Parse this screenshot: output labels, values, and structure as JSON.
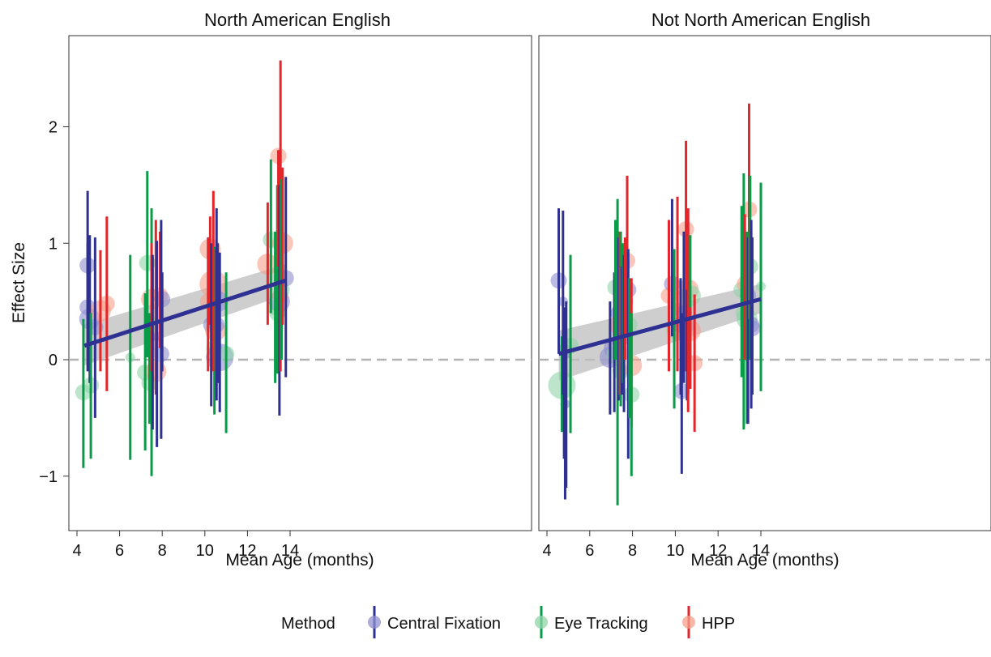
{
  "colors": {
    "central_fixation": "#2e3192",
    "eye_tracking": "#0a9b49",
    "hpp": "#e3262c",
    "central_fixation_point": "#8f8fd0",
    "eye_tracking_point": "#8fd4a8",
    "hpp_point": "#f7a08a",
    "fit_line": "#2e3192",
    "ribbon": "#bdbdbd",
    "zero_line": "#b3b3b3"
  },
  "legend": {
    "title": "Method",
    "items": [
      {
        "key": "central_fixation",
        "label": "Central Fixation",
        "icon": "errorbar-point-icon"
      },
      {
        "key": "eye_tracking",
        "label": "Eye Tracking",
        "icon": "errorbar-point-icon"
      },
      {
        "key": "hpp",
        "label": "HPP",
        "icon": "errorbar-point-icon"
      }
    ]
  },
  "chart_data": [
    {
      "type": "scatter",
      "title": "North American English",
      "xlabel": "Mean Age (months)",
      "ylabel": "Effect Size",
      "xlim": [
        3.8,
        14.4
      ],
      "ylim": [
        -1.45,
        2.75
      ],
      "xticks": [
        "4",
        "6",
        "8",
        "10",
        "12",
        "14"
      ],
      "yticks": [
        "−1",
        "0",
        "1",
        "2"
      ],
      "reference_line_y": 0,
      "fit": {
        "x": [
          4.35,
          13.8
        ],
        "y": [
          0.12,
          0.68
        ],
        "lower": [
          -0.05,
          0.56
        ],
        "upper": [
          0.3,
          0.82
        ]
      },
      "points": [
        {
          "method": "eye_tracking",
          "x": 4.3,
          "y": -0.28,
          "lo": -0.93,
          "hi": 0.35,
          "size": 2
        },
        {
          "method": "central_fixation",
          "x": 4.5,
          "y": 0.81,
          "lo": 0.3,
          "hi": 1.45,
          "size": 2
        },
        {
          "method": "central_fixation",
          "x": 4.5,
          "y": 0.45,
          "lo": -0.1,
          "hi": 1.0,
          "size": 2
        },
        {
          "method": "central_fixation",
          "x": 4.6,
          "y": 0.35,
          "lo": -0.2,
          "hi": 1.07,
          "size": 3
        },
        {
          "method": "eye_tracking",
          "x": 4.65,
          "y": -0.22,
          "lo": -0.85,
          "hi": 0.4,
          "size": 2
        },
        {
          "method": "central_fixation",
          "x": 4.85,
          "y": 0.28,
          "lo": -0.5,
          "hi": 1.05,
          "size": 2
        },
        {
          "method": "hpp",
          "x": 5.1,
          "y": 0.42,
          "lo": -0.1,
          "hi": 0.94,
          "size": 3
        },
        {
          "method": "hpp",
          "x": 5.4,
          "y": 0.48,
          "lo": -0.27,
          "hi": 1.23,
          "size": 2
        },
        {
          "method": "eye_tracking",
          "x": 6.5,
          "y": 0.02,
          "lo": -0.86,
          "hi": 0.9,
          "size": 1
        },
        {
          "method": "eye_tracking",
          "x": 7.2,
          "y": -0.11,
          "lo": -0.78,
          "hi": 0.57,
          "size": 2
        },
        {
          "method": "eye_tracking",
          "x": 7.3,
          "y": 0.83,
          "lo": 0.02,
          "hi": 1.62,
          "size": 2
        },
        {
          "method": "eye_tracking",
          "x": 7.4,
          "y": -0.2,
          "lo": -0.55,
          "hi": 0.4,
          "size": 2
        },
        {
          "method": "eye_tracking",
          "x": 7.5,
          "y": 0.3,
          "lo": -1.0,
          "hi": 1.3,
          "size": 2
        },
        {
          "method": "hpp",
          "x": 7.5,
          "y": 0.52,
          "lo": -0.1,
          "hi": 1.0,
          "size": 3
        },
        {
          "method": "central_fixation",
          "x": 7.55,
          "y": 0.15,
          "lo": -0.6,
          "hi": 0.9,
          "size": 2
        },
        {
          "method": "hpp",
          "x": 7.7,
          "y": -0.1,
          "lo": -0.3,
          "hi": 1.2,
          "size": 3
        },
        {
          "method": "central_fixation",
          "x": 7.75,
          "y": 0.2,
          "lo": -0.75,
          "hi": 1.02,
          "size": 1
        },
        {
          "method": "hpp",
          "x": 7.9,
          "y": 0.55,
          "lo": 0.1,
          "hi": 1.1,
          "size": 2
        },
        {
          "method": "central_fixation",
          "x": 7.95,
          "y": 0.05,
          "lo": -0.68,
          "hi": 1.2,
          "size": 2
        },
        {
          "method": "central_fixation",
          "x": 8.0,
          "y": 0.52,
          "lo": -0.1,
          "hi": 0.75,
          "size": 2
        },
        {
          "method": "hpp",
          "x": 10.15,
          "y": 0.5,
          "lo": -0.1,
          "hi": 1.05,
          "size": 2
        },
        {
          "method": "hpp",
          "x": 10.25,
          "y": 0.95,
          "lo": 0.3,
          "hi": 1.23,
          "size": 3
        },
        {
          "method": "central_fixation",
          "x": 10.3,
          "y": 0.3,
          "lo": -0.4,
          "hi": 1.0,
          "size": 2
        },
        {
          "method": "hpp",
          "x": 10.4,
          "y": 0.65,
          "lo": -0.1,
          "hi": 1.45,
          "size": 4
        },
        {
          "method": "eye_tracking",
          "x": 10.45,
          "y": 0.1,
          "lo": -0.47,
          "hi": 0.97,
          "size": 2
        },
        {
          "method": "hpp",
          "x": 10.5,
          "y": 0.25,
          "lo": -0.1,
          "hi": 0.95,
          "size": 3
        },
        {
          "method": "central_fixation",
          "x": 10.55,
          "y": 0.3,
          "lo": -0.35,
          "hi": 1.3,
          "size": 2
        },
        {
          "method": "central_fixation",
          "x": 10.6,
          "y": 0.5,
          "lo": -0.2,
          "hi": 1.0,
          "size": 3
        },
        {
          "method": "central_fixation",
          "x": 10.7,
          "y": 0.02,
          "lo": -0.45,
          "hi": 0.92,
          "size": 4
        },
        {
          "method": "eye_tracking",
          "x": 11.0,
          "y": 0.05,
          "lo": -0.63,
          "hi": 0.75,
          "size": 2
        },
        {
          "method": "hpp",
          "x": 12.95,
          "y": 0.82,
          "lo": 0.3,
          "hi": 1.35,
          "size": 3
        },
        {
          "method": "eye_tracking",
          "x": 13.1,
          "y": 1.03,
          "lo": 0.4,
          "hi": 1.72,
          "size": 2
        },
        {
          "method": "eye_tracking",
          "x": 13.3,
          "y": 0.45,
          "lo": -0.2,
          "hi": 1.1,
          "size": 2
        },
        {
          "method": "eye_tracking",
          "x": 13.4,
          "y": 0.4,
          "lo": -0.12,
          "hi": 1.5,
          "size": 2
        },
        {
          "method": "hpp",
          "x": 13.45,
          "y": 1.75,
          "lo": 0.8,
          "hi": 1.8,
          "size": 2
        },
        {
          "method": "central_fixation",
          "x": 13.5,
          "y": 0.5,
          "lo": -0.48,
          "hi": 1.5,
          "size": 3
        },
        {
          "method": "hpp",
          "x": 13.55,
          "y": 0.55,
          "lo": -0.1,
          "hi": 2.57,
          "size": 2
        },
        {
          "method": "eye_tracking",
          "x": 13.6,
          "y": 0.6,
          "lo": 0.0,
          "hi": 1.55,
          "size": 2
        },
        {
          "method": "hpp",
          "x": 13.65,
          "y": 1.0,
          "lo": 0.3,
          "hi": 1.65,
          "size": 3
        },
        {
          "method": "central_fixation",
          "x": 13.8,
          "y": 0.7,
          "lo": -0.15,
          "hi": 1.57,
          "size": 2
        }
      ]
    },
    {
      "type": "scatter",
      "title": "Not North American English",
      "xlabel": "Mean Age (months)",
      "ylabel": "",
      "xlim": [
        3.8,
        14.4
      ],
      "ylim": [
        -1.45,
        2.75
      ],
      "xticks": [
        "4",
        "6",
        "8",
        "10",
        "12",
        "14"
      ],
      "yticks": [
        "−1",
        "0",
        "1",
        "2"
      ],
      "reference_line_y": 0,
      "fit": {
        "x": [
          4.55,
          14.0
        ],
        "y": [
          0.05,
          0.52
        ],
        "lower": [
          -0.18,
          0.4
        ],
        "upper": [
          0.25,
          0.65
        ]
      },
      "points": [
        {
          "method": "central_fixation",
          "x": 4.55,
          "y": 0.68,
          "lo": 0.05,
          "hi": 1.3,
          "size": 2
        },
        {
          "method": "eye_tracking",
          "x": 4.7,
          "y": -0.22,
          "lo": -0.62,
          "hi": 0.2,
          "size": 4
        },
        {
          "method": "central_fixation",
          "x": 4.75,
          "y": 0.5,
          "lo": -0.3,
          "hi": 1.28,
          "size": 1
        },
        {
          "method": "central_fixation",
          "x": 4.8,
          "y": 0.1,
          "lo": -0.85,
          "hi": 0.3,
          "size": 1
        },
        {
          "method": "central_fixation",
          "x": 4.85,
          "y": -0.38,
          "lo": -1.2,
          "hi": 0.45,
          "size": 1
        },
        {
          "method": "central_fixation",
          "x": 4.9,
          "y": 0.05,
          "lo": -1.1,
          "hi": 0.5,
          "size": 1
        },
        {
          "method": "eye_tracking",
          "x": 5.1,
          "y": 0.12,
          "lo": -0.63,
          "hi": 0.9,
          "size": 2
        },
        {
          "method": "central_fixation",
          "x": 6.95,
          "y": 0.02,
          "lo": -0.47,
          "hi": 0.5,
          "size": 3
        },
        {
          "method": "central_fixation",
          "x": 7.15,
          "y": 0.1,
          "lo": -0.45,
          "hi": 0.75,
          "size": 3
        },
        {
          "method": "eye_tracking",
          "x": 7.2,
          "y": 0.62,
          "lo": 0.0,
          "hi": 1.2,
          "size": 2
        },
        {
          "method": "eye_tracking",
          "x": 7.3,
          "y": 0.05,
          "lo": -1.25,
          "hi": 1.38,
          "size": 3
        },
        {
          "method": "central_fixation",
          "x": 7.35,
          "y": 0.4,
          "lo": -0.35,
          "hi": 1.05,
          "size": 2
        },
        {
          "method": "hpp",
          "x": 7.4,
          "y": 0.3,
          "lo": -0.3,
          "hi": 1.1,
          "size": 3
        },
        {
          "method": "eye_tracking",
          "x": 7.45,
          "y": -0.1,
          "lo": -0.4,
          "hi": 1.1,
          "size": 2
        },
        {
          "method": "central_fixation",
          "x": 7.5,
          "y": 0.3,
          "lo": -0.3,
          "hi": 0.8,
          "size": 2
        },
        {
          "method": "eye_tracking",
          "x": 7.55,
          "y": 0.45,
          "lo": -0.2,
          "hi": 1.0,
          "size": 2
        },
        {
          "method": "central_fixation",
          "x": 7.6,
          "y": 0.2,
          "lo": -0.45,
          "hi": 0.9,
          "size": 2
        },
        {
          "method": "hpp",
          "x": 7.65,
          "y": 0.5,
          "lo": 0.0,
          "hi": 1.05,
          "size": 2
        },
        {
          "method": "hpp",
          "x": 7.75,
          "y": 0.85,
          "lo": 0.2,
          "hi": 1.58,
          "size": 2
        },
        {
          "method": "central_fixation",
          "x": 7.8,
          "y": 0.6,
          "lo": -0.85,
          "hi": 0.95,
          "size": 2
        },
        {
          "method": "eye_tracking",
          "x": 7.85,
          "y": 0.3,
          "lo": -0.5,
          "hi": 0.7,
          "size": 2
        },
        {
          "method": "hpp",
          "x": 7.95,
          "y": -0.05,
          "lo": -0.58,
          "hi": 0.7,
          "size": 3
        },
        {
          "method": "eye_tracking",
          "x": 7.95,
          "y": -0.3,
          "lo": -1.0,
          "hi": 0.4,
          "size": 2
        },
        {
          "method": "hpp",
          "x": 9.7,
          "y": 0.55,
          "lo": -0.1,
          "hi": 1.2,
          "size": 2
        },
        {
          "method": "central_fixation",
          "x": 9.85,
          "y": 0.65,
          "lo": 0.2,
          "hi": 1.38,
          "size": 2
        },
        {
          "method": "eye_tracking",
          "x": 9.95,
          "y": 0.25,
          "lo": -0.42,
          "hi": 0.95,
          "size": 2
        },
        {
          "method": "hpp",
          "x": 10.1,
          "y": 0.5,
          "lo": -0.1,
          "hi": 1.4,
          "size": 3
        },
        {
          "method": "central_fixation",
          "x": 10.25,
          "y": 0.3,
          "lo": -0.3,
          "hi": 0.7,
          "size": 2
        },
        {
          "method": "central_fixation",
          "x": 10.3,
          "y": -0.27,
          "lo": -0.98,
          "hi": 0.4,
          "size": 2
        },
        {
          "method": "central_fixation",
          "x": 10.4,
          "y": 0.4,
          "lo": -0.2,
          "hi": 1.1,
          "size": 2
        },
        {
          "method": "hpp",
          "x": 10.5,
          "y": 1.12,
          "lo": -0.1,
          "hi": 1.88,
          "size": 2
        },
        {
          "method": "central_fixation",
          "x": 10.55,
          "y": 0.3,
          "lo": -0.35,
          "hi": 0.6,
          "size": 2
        },
        {
          "method": "hpp",
          "x": 10.6,
          "y": 0.6,
          "lo": -0.45,
          "hi": 1.3,
          "size": 3
        },
        {
          "method": "eye_tracking",
          "x": 10.7,
          "y": 0.55,
          "lo": 0.0,
          "hi": 1.07,
          "size": 3
        },
        {
          "method": "hpp",
          "x": 10.7,
          "y": 0.25,
          "lo": -0.25,
          "hi": 0.45,
          "size": 3
        },
        {
          "method": "hpp",
          "x": 10.9,
          "y": -0.03,
          "lo": -0.62,
          "hi": 0.56,
          "size": 2
        },
        {
          "method": "eye_tracking",
          "x": 13.1,
          "y": 0.6,
          "lo": -0.15,
          "hi": 1.32,
          "size": 2
        },
        {
          "method": "eye_tracking",
          "x": 13.2,
          "y": 0.4,
          "lo": -0.6,
          "hi": 1.6,
          "size": 2
        },
        {
          "method": "hpp",
          "x": 13.25,
          "y": 0.65,
          "lo": 0.0,
          "hi": 1.25,
          "size": 2
        },
        {
          "method": "eye_tracking",
          "x": 13.35,
          "y": 0.35,
          "lo": -0.55,
          "hi": 1.1,
          "size": 3
        },
        {
          "method": "central_fixation",
          "x": 13.4,
          "y": 0.55,
          "lo": -0.55,
          "hi": 1.05,
          "size": 2
        },
        {
          "method": "hpp",
          "x": 13.45,
          "y": 1.29,
          "lo": 0.35,
          "hi": 2.2,
          "size": 2
        },
        {
          "method": "eye_tracking",
          "x": 13.5,
          "y": 0.8,
          "lo": 0.0,
          "hi": 1.58,
          "size": 2
        },
        {
          "method": "central_fixation",
          "x": 13.55,
          "y": 0.3,
          "lo": -0.42,
          "hi": 1.2,
          "size": 2
        },
        {
          "method": "central_fixation",
          "x": 13.6,
          "y": 0.27,
          "lo": -0.3,
          "hi": 1.05,
          "size": 2
        },
        {
          "method": "eye_tracking",
          "x": 14.0,
          "y": 0.63,
          "lo": -0.27,
          "hi": 1.52,
          "size": 1
        }
      ]
    }
  ]
}
